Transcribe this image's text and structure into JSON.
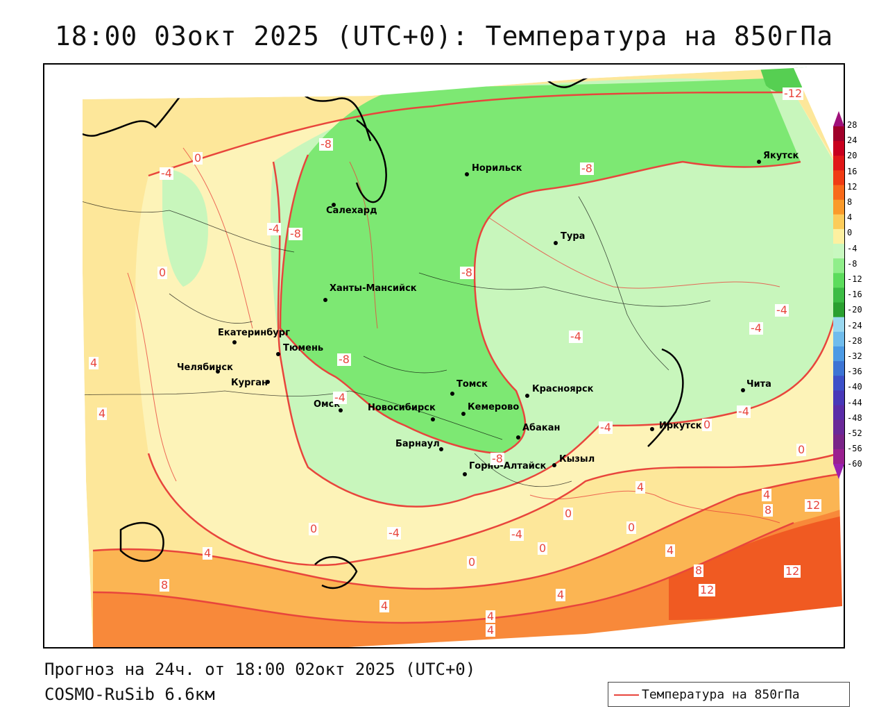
{
  "title": "18:00 03окт 2025 (UTC+0): Температура на 850гПа",
  "footer": {
    "forecast": "Прогноз на 24ч. от 18:00 02окт 2025 (UTC+0)",
    "model": "COSMO-RuSib 6.6км"
  },
  "legend": {
    "label": "Температура на 850гПа",
    "color": "#e8453c"
  },
  "colorbar": {
    "labels": [
      "28",
      "24",
      "20",
      "16",
      "12",
      "8",
      "4",
      "0",
      "-4",
      "-8",
      "-12",
      "-16",
      "-20",
      "-24",
      "-28",
      "-32",
      "-36",
      "-40",
      "-44",
      "-48",
      "-52",
      "-56",
      "-60"
    ],
    "colors": [
      "#a0002a",
      "#c8001e",
      "#e01818",
      "#f03c14",
      "#f86a1a",
      "#fa9a2a",
      "#fccc5a",
      "#fdf0a0",
      "#c8f8c0",
      "#90ee8a",
      "#5cdc5c",
      "#3cbc44",
      "#2aa030",
      "#9ad8f0",
      "#70bcec",
      "#4c9ae4",
      "#3c74d4",
      "#3c50c8",
      "#4838b8",
      "#5a2ca8",
      "#6a2898",
      "#7a2488",
      "#9a2090"
    ]
  },
  "cities": [
    {
      "name": "Норильск"
    },
    {
      "name": "Якутск"
    },
    {
      "name": "Салехард"
    },
    {
      "name": "Тура"
    },
    {
      "name": "Ханты-Мансийск"
    },
    {
      "name": "Екатеринбург"
    },
    {
      "name": "Тюмень"
    },
    {
      "name": "Челябинск"
    },
    {
      "name": "Курган"
    },
    {
      "name": "Омск"
    },
    {
      "name": "Новосибирск"
    },
    {
      "name": "Томск"
    },
    {
      "name": "Кемерово"
    },
    {
      "name": "Красноярск"
    },
    {
      "name": "Абакан"
    },
    {
      "name": "Барнаул"
    },
    {
      "name": "Горно-Алтайск"
    },
    {
      "name": "Кызыл"
    },
    {
      "name": "Иркутск"
    },
    {
      "name": "Чита"
    }
  ],
  "contour_labels": [
    "-12",
    "-8",
    "0",
    "-4",
    "-4",
    "-8",
    "0",
    "-8",
    "-8",
    "-4",
    "-4",
    "-4",
    "-8",
    "4",
    "4",
    "-4",
    "-4",
    "0",
    "0",
    "4",
    "8",
    "12",
    "-4",
    "8",
    "0",
    "4",
    "0",
    "-4",
    "-4",
    "0",
    "0",
    "4",
    "8",
    "12",
    "12",
    "4",
    "4",
    "4",
    "4",
    "4",
    "0",
    "-8"
  ]
}
